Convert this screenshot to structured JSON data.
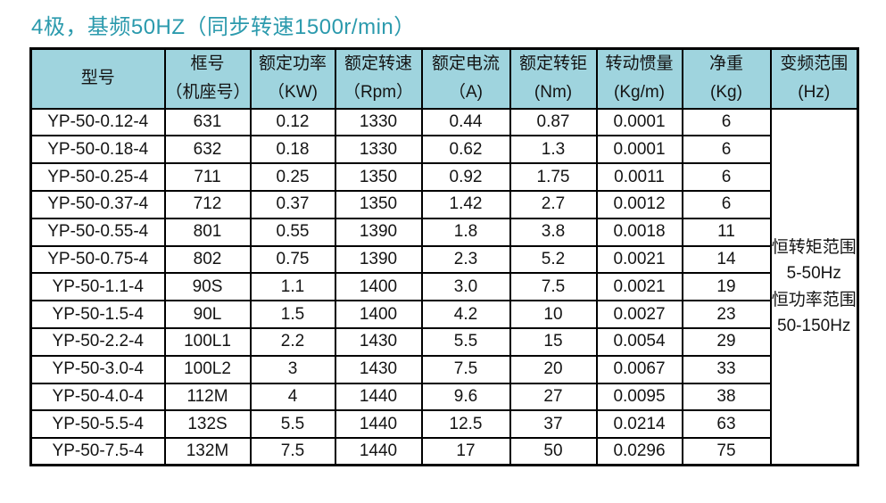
{
  "title": "4极，基频50HZ（同步转速1500r/min）",
  "colors": {
    "title": "#2b9aad",
    "header_bg": "#9fd4de",
    "border": "#000000",
    "text": "#141414"
  },
  "table": {
    "headers": [
      {
        "line1": "型号",
        "line2": ""
      },
      {
        "line1": "框号",
        "line2": "（机座号）"
      },
      {
        "line1": "额定功率",
        "line2": "（KW)"
      },
      {
        "line1": "额定转速",
        "line2": "（Rpm）"
      },
      {
        "line1": "额定电流",
        "line2": "（A)"
      },
      {
        "line1": "额定转钜",
        "line2": "(Nm)"
      },
      {
        "line1": "转动惯量",
        "line2": "(Kg/m)"
      },
      {
        "line1": "净重",
        "line2": "(Kg)"
      },
      {
        "line1": "变频范围",
        "line2": "(Hz)"
      }
    ],
    "rows": [
      [
        "YP-50-0.12-4",
        "631",
        "0.12",
        "1330",
        "0.44",
        "0.87",
        "0.0001",
        "6"
      ],
      [
        "YP-50-0.18-4",
        "632",
        "0.18",
        "1330",
        "0.62",
        "1.3",
        "0.0001",
        "6"
      ],
      [
        "YP-50-0.25-4",
        "711",
        "0.25",
        "1350",
        "0.92",
        "1.75",
        "0.0011",
        "6"
      ],
      [
        "YP-50-0.37-4",
        "712",
        "0.37",
        "1350",
        "1.42",
        "2.7",
        "0.0012",
        "6"
      ],
      [
        "YP-50-0.55-4",
        "801",
        "0.55",
        "1390",
        "1.8",
        "3.8",
        "0.0018",
        "11"
      ],
      [
        "YP-50-0.75-4",
        "802",
        "0.75",
        "1390",
        "2.3",
        "5.2",
        "0.0021",
        "14"
      ],
      [
        "YP-50-1.1-4",
        "90S",
        "1.1",
        "1400",
        "3.0",
        "7.5",
        "0.0021",
        "19"
      ],
      [
        "YP-50-1.5-4",
        "90L",
        "1.5",
        "1400",
        "4.2",
        "10",
        "0.0027",
        "23"
      ],
      [
        "YP-50-2.2-4",
        "100L1",
        "2.2",
        "1430",
        "5.5",
        "15",
        "0.0054",
        "29"
      ],
      [
        "YP-50-3.0-4",
        "100L2",
        "3",
        "1430",
        "7.5",
        "20",
        "0.0067",
        "33"
      ],
      [
        "YP-50-4.0-4",
        "112M",
        "4",
        "1440",
        "9.6",
        "27",
        "0.0095",
        "38"
      ],
      [
        "YP-50-5.5-4",
        "132S",
        "5.5",
        "1440",
        "12.5",
        "37",
        "0.0214",
        "63"
      ],
      [
        "YP-50-7.5-4",
        "132M",
        "7.5",
        "1440",
        "17",
        "50",
        "0.0296",
        "75"
      ]
    ],
    "freq_range_cell": {
      "lines": [
        "恒转矩范围",
        "5-50Hz",
        "恒功率范围",
        "50-150Hz"
      ]
    }
  }
}
